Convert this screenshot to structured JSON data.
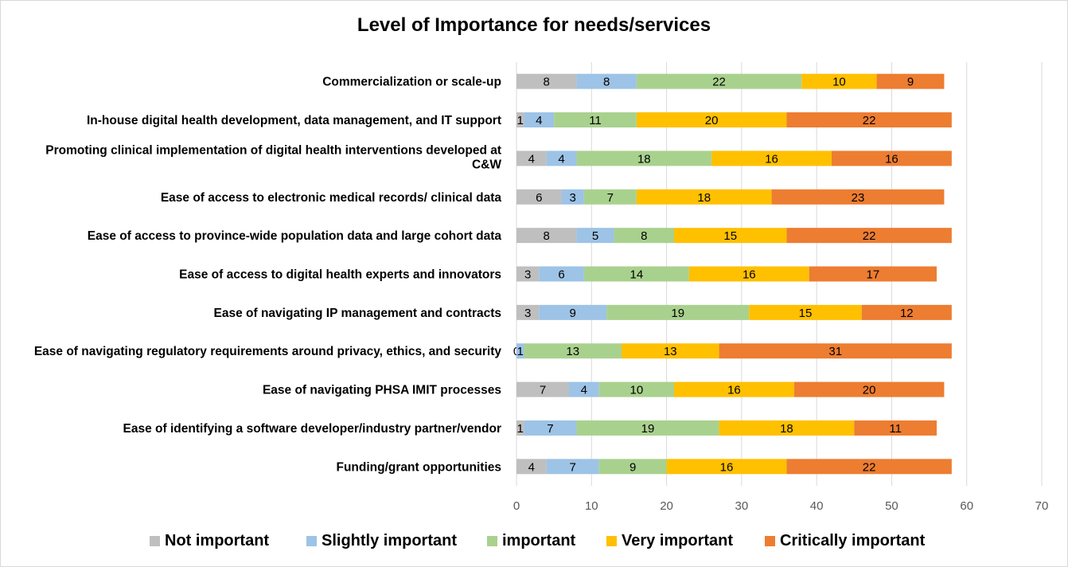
{
  "chart_data": {
    "type": "bar",
    "orientation": "horizontal",
    "stacked": true,
    "title": "Level of Importance for needs/services",
    "categories": [
      "Commercialization or scale-up",
      "In-house digital health development, data management, and IT support",
      "Promoting clinical implementation of digital health interventions developed at C&W",
      "Ease of access to electronic medical records/ clinical data",
      "Ease of access to province-wide population data and large cohort data",
      "Ease of access to digital health experts and innovators",
      "Ease of navigating IP management and contracts",
      "Ease of navigating regulatory requirements around privacy, ethics, and security",
      "Ease of navigating PHSA IMIT processes",
      "Ease of identifying a software developer/industry partner/vendor",
      "Funding/grant opportunities"
    ],
    "category_lines": [
      [
        "Commercialization or scale-up"
      ],
      [
        "In-house digital health development, data management, and IT support"
      ],
      [
        "Promoting clinical implementation of digital health interventions developed at",
        "C&W"
      ],
      [
        "Ease of access to electronic medical records/ clinical data"
      ],
      [
        "Ease of access to province-wide population data and large cohort data"
      ],
      [
        "Ease of access to digital health experts and innovators"
      ],
      [
        "Ease of navigating IP management and contracts"
      ],
      [
        "Ease of navigating regulatory requirements around privacy, ethics, and security"
      ],
      [
        "Ease of navigating PHSA IMIT processes"
      ],
      [
        "Ease of identifying a software developer/industry partner/vendor"
      ],
      [
        "Funding/grant opportunities"
      ]
    ],
    "series": [
      {
        "name": "Not important",
        "color": "#BFBFBF",
        "values": [
          8,
          1,
          4,
          6,
          8,
          3,
          3,
          0,
          7,
          1,
          4
        ]
      },
      {
        "name": "Slightly important",
        "color": "#9DC3E6",
        "values": [
          8,
          4,
          4,
          3,
          5,
          6,
          9,
          1,
          4,
          7,
          7
        ]
      },
      {
        "name": "important",
        "color": "#A9D18E",
        "values": [
          22,
          11,
          18,
          7,
          8,
          14,
          19,
          13,
          10,
          19,
          9
        ]
      },
      {
        "name": "Very important",
        "color": "#FFC000",
        "values": [
          10,
          20,
          16,
          18,
          15,
          16,
          15,
          13,
          16,
          18,
          16
        ]
      },
      {
        "name": "Critically important",
        "color": "#ED7D31",
        "values": [
          9,
          22,
          16,
          23,
          22,
          17,
          12,
          31,
          20,
          11,
          22
        ]
      }
    ],
    "xlim": [
      0,
      70
    ],
    "xticks": [
      "0",
      "10",
      "20",
      "30",
      "40",
      "50",
      "60",
      "70"
    ],
    "grid": true,
    "legend_position": "bottom"
  }
}
